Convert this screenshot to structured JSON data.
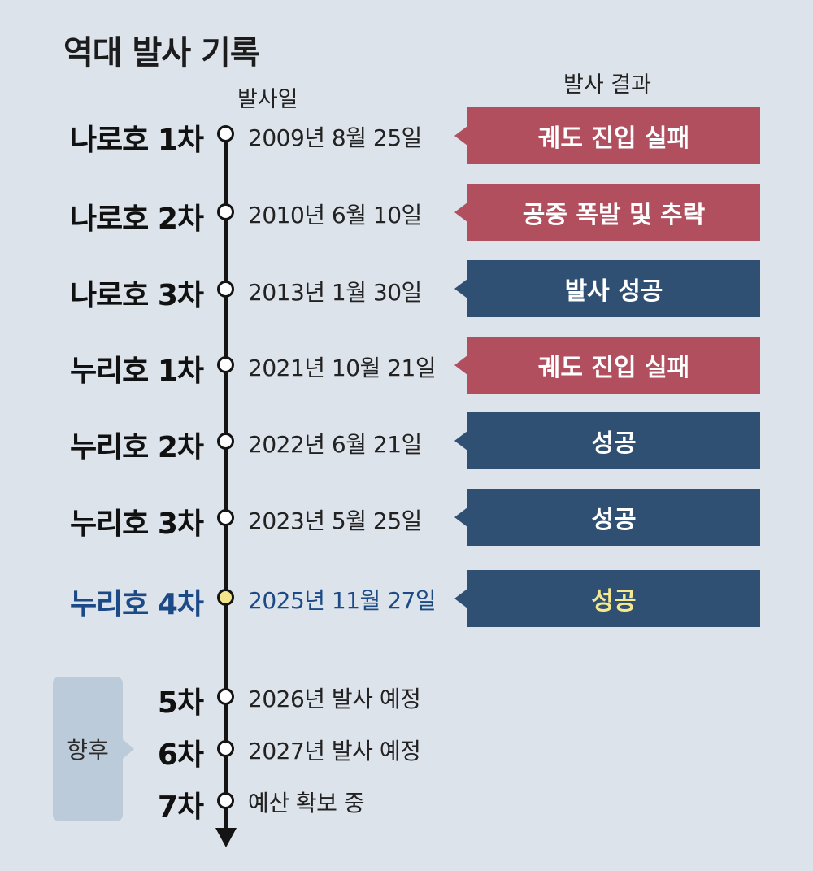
{
  "title": "역대 발사 기록",
  "headers": {
    "date": "발사일",
    "result": "발사 결과"
  },
  "launches": [
    {
      "name": "나로호 1차",
      "date": "2009년 8월 25일",
      "result": "궤도 진입 실패"
    },
    {
      "name": "나로호 2차",
      "date": "2010년 6월 10일",
      "result": "공중 폭발 및 추락"
    },
    {
      "name": "나로호 3차",
      "date": "2013년 1월 30일",
      "result": "발사 성공"
    },
    {
      "name": "누리호 1차",
      "date": "2021년 10월 21일",
      "result": "궤도 진입 실패"
    },
    {
      "name": "누리호 2차",
      "date": "2022년 6월 21일",
      "result": "성공"
    },
    {
      "name": "누리호 3차",
      "date": "2023년 5월 25일",
      "result": "성공"
    },
    {
      "name": "누리호 4차",
      "date": "2025년 11월 27일",
      "result": "성공"
    }
  ],
  "future": {
    "label": "향후",
    "items": [
      {
        "name": "5차",
        "date": "2026년 발사 예정"
      },
      {
        "name": "6차",
        "date": "2027년 발사 예정"
      },
      {
        "name": "7차",
        "date": "예산 확보 중"
      }
    ]
  },
  "colors": {
    "background": "#dde3ea",
    "failure": "#b24f5f",
    "success": "#2f5073",
    "highlight_text": "#1b4a86",
    "highlight_node": "#f2e58a"
  }
}
